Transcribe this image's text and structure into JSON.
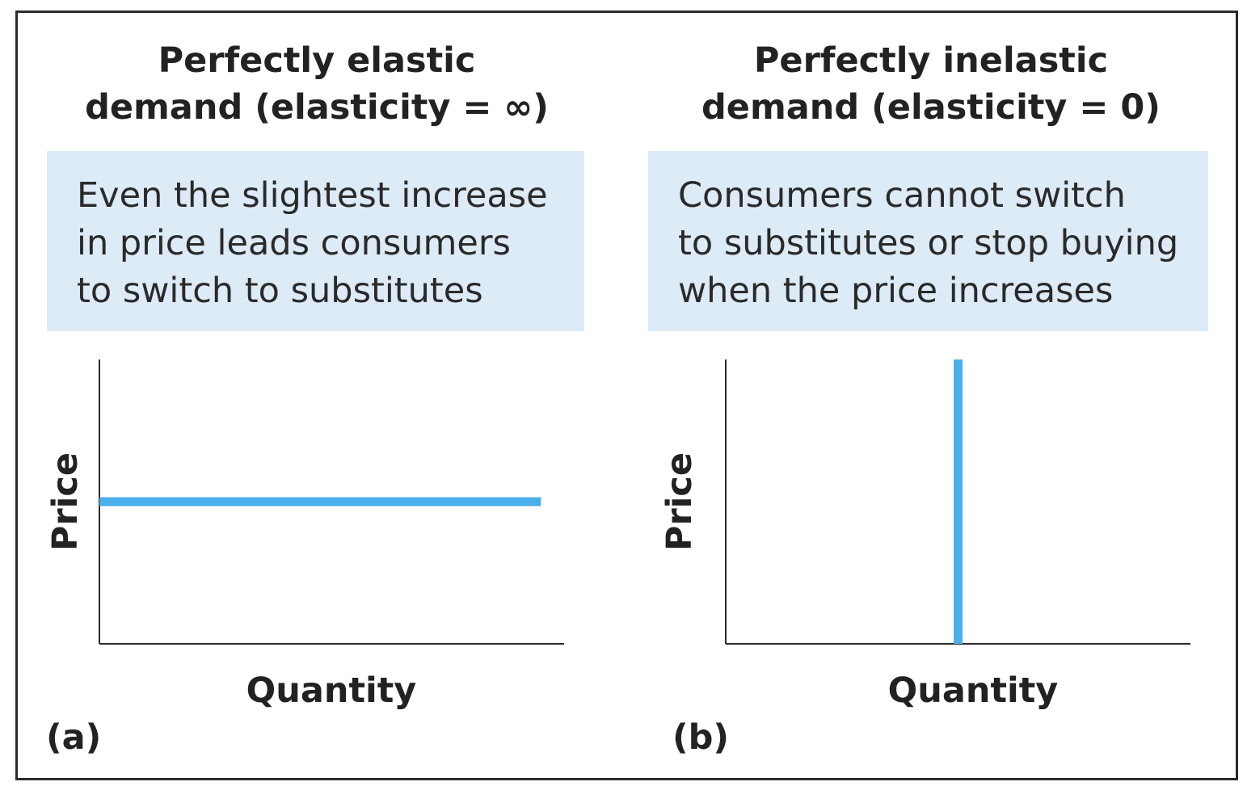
{
  "colors": {
    "curve": "#4aaeea",
    "note_background": "#dcebf6",
    "axis": "#2b2b2b"
  },
  "panels": [
    {
      "title_lines": [
        "Perfectly elastic",
        "demand (elasticity = ∞)"
      ],
      "note_lines": [
        "Even the slightest increase",
        "in price leads consumers",
        "to switch to substitutes"
      ],
      "ylabel": "Price",
      "xlabel": "Quantity",
      "letter": "(a)"
    },
    {
      "title_lines": [
        "Perfectly inelastic",
        "demand (elasticity = 0)"
      ],
      "note_lines": [
        "Consumers cannot switch",
        "to substitutes or stop buying",
        "when the price increases"
      ],
      "ylabel": "Price",
      "xlabel": "Quantity",
      "letter": "(b)"
    }
  ],
  "chart_data": [
    {
      "type": "line",
      "title": "Perfectly elastic demand (elasticity = ∞)",
      "xlabel": "Quantity",
      "ylabel": "Price",
      "xlim": [
        0,
        1
      ],
      "ylim": [
        0,
        1
      ],
      "grid": false,
      "series": [
        {
          "x": [
            0,
            0.95
          ],
          "y": [
            0.5,
            0.5
          ]
        }
      ]
    },
    {
      "type": "line",
      "title": "Perfectly inelastic demand (elasticity = 0)",
      "xlabel": "Quantity",
      "ylabel": "Price",
      "xlim": [
        0,
        1
      ],
      "ylim": [
        0,
        1
      ],
      "grid": false,
      "series": [
        {
          "x": [
            0.5,
            0.5
          ],
          "y": [
            0,
            1
          ]
        }
      ]
    }
  ]
}
